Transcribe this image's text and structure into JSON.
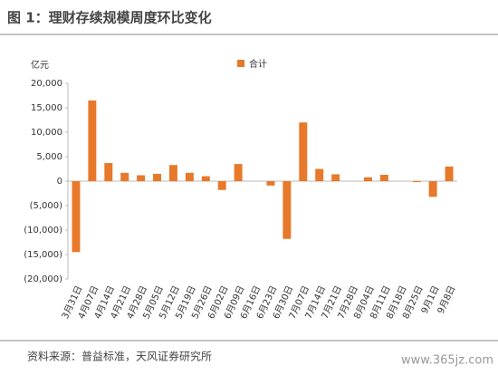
{
  "title": "图 1：理财存续规模周度环比变化",
  "source": "资料来源：普益标准，天风证券研究所",
  "watermark": "www.365jz.com",
  "chart_data": {
    "type": "bar",
    "y_label": "亿元",
    "legend": "合计",
    "color": "#e8782a",
    "series": [
      {
        "name": "合计",
        "color": "#e8782a",
        "values": [
          -14500,
          16500,
          3700,
          1700,
          1200,
          1500,
          3300,
          1700,
          1000,
          -1800,
          3500,
          0,
          -900,
          -11800,
          12000,
          2500,
          1400,
          0,
          800,
          1300,
          0,
          -200,
          -3200,
          3000
        ]
      }
    ],
    "categories": [
      "3月31日",
      "4月07日",
      "4月14日",
      "4月21日",
      "4月28日",
      "5月05日",
      "5月12日",
      "5月19日",
      "5月26日",
      "6月02日",
      "6月09日",
      "6月16日",
      "6月23日",
      "6月30日",
      "7月07日",
      "7月14日",
      "7月21日",
      "7月28日",
      "8月04日",
      "8月11日",
      "8月18日",
      "8月25日",
      "9月1日",
      "9月8日"
    ],
    "ylim": [
      -20000,
      20000
    ],
    "yticks": [
      {
        "value": 20000,
        "label": "20,000"
      },
      {
        "value": 15000,
        "label": "15,000"
      },
      {
        "value": 10000,
        "label": "10,000"
      },
      {
        "value": 5000,
        "label": "5,000"
      },
      0,
      {
        "value": -5000,
        "label": "(5,000)"
      },
      {
        "value": -10000,
        "label": "(10,000)"
      },
      {
        "value": -15000,
        "label": "(15,000)"
      },
      {
        "value": -20000,
        "label": "(20,000)"
      }
    ],
    "grid": false
  }
}
